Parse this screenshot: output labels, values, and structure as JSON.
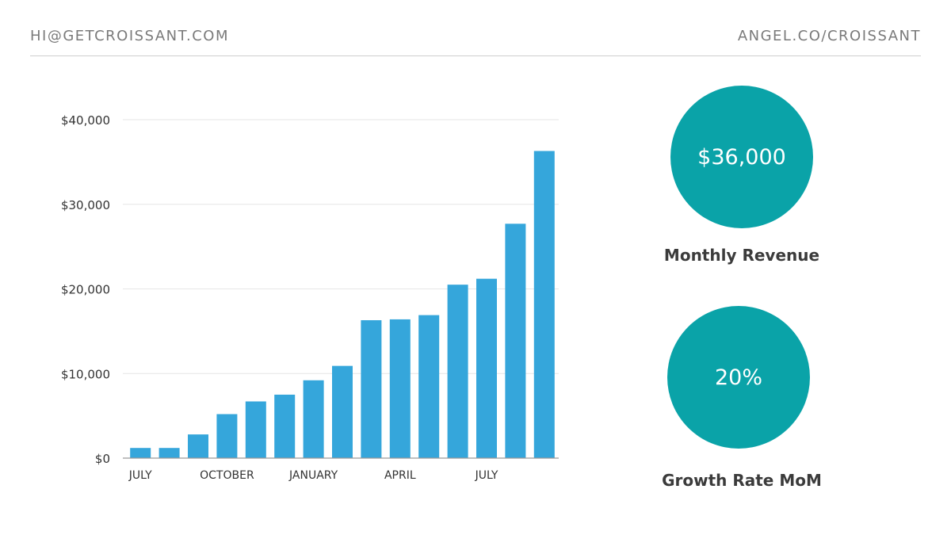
{
  "header": {
    "left": "HI@GETCROISSANT.COM",
    "right": "ANGEL.CO/CROISSANT"
  },
  "chart_data": {
    "type": "bar",
    "categories": [
      "JULY",
      "",
      "",
      "OCTOBER",
      "",
      "",
      "JANUARY",
      "",
      "",
      "APRIL",
      "",
      "",
      "JULY",
      "",
      ""
    ],
    "values": [
      1200,
      1200,
      2800,
      5200,
      6700,
      7500,
      9200,
      10900,
      16300,
      16400,
      16900,
      20500,
      21200,
      27700,
      36300
    ],
    "ylim": [
      0,
      40000
    ],
    "yticks": [
      {
        "value": 0,
        "label": "$0"
      },
      {
        "value": 10000,
        "label": "$10,000"
      },
      {
        "value": 20000,
        "label": "$20,000"
      },
      {
        "value": 30000,
        "label": "$30,000"
      },
      {
        "value": 40000,
        "label": "$40,000"
      }
    ],
    "bar_color": "#35a6db",
    "grid": true
  },
  "stats": [
    {
      "value": "$36,000",
      "label": "Monthly Revenue",
      "color": "#0aa3a8"
    },
    {
      "value": "20%",
      "label": "Growth Rate MoM",
      "color": "#0aa3a8"
    }
  ]
}
